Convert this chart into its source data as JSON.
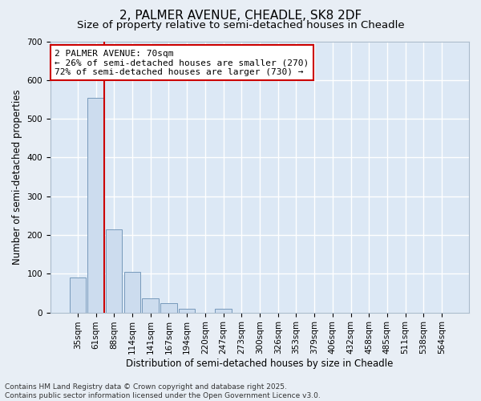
{
  "title_line1": "2, PALMER AVENUE, CHEADLE, SK8 2DF",
  "title_line2": "Size of property relative to semi-detached houses in Cheadle",
  "xlabel": "Distribution of semi-detached houses by size in Cheadle",
  "ylabel": "Number of semi-detached properties",
  "categories": [
    "35sqm",
    "61sqm",
    "88sqm",
    "114sqm",
    "141sqm",
    "167sqm",
    "194sqm",
    "220sqm",
    "247sqm",
    "273sqm",
    "300sqm",
    "326sqm",
    "353sqm",
    "379sqm",
    "406sqm",
    "432sqm",
    "458sqm",
    "485sqm",
    "511sqm",
    "538sqm",
    "564sqm"
  ],
  "values": [
    90,
    555,
    215,
    105,
    37,
    25,
    10,
    0,
    10,
    0,
    0,
    0,
    0,
    0,
    0,
    0,
    0,
    0,
    0,
    0,
    0
  ],
  "bar_color": "#ccdcee",
  "bar_edge_color": "#7799bb",
  "red_line_index": 1,
  "red_line_color": "#cc0000",
  "annotation_text": "2 PALMER AVENUE: 70sqm\n← 26% of semi-detached houses are smaller (270)\n72% of semi-detached houses are larger (730) →",
  "annotation_box_facecolor": "#ffffff",
  "annotation_box_edgecolor": "#cc0000",
  "ylim": [
    0,
    700
  ],
  "yticks": [
    0,
    100,
    200,
    300,
    400,
    500,
    600,
    700
  ],
  "footer_line1": "Contains HM Land Registry data © Crown copyright and database right 2025.",
  "footer_line2": "Contains public sector information licensed under the Open Government Licence v3.0.",
  "fig_facecolor": "#e8eef5",
  "plot_facecolor": "#dce8f5",
  "title1_fontsize": 11,
  "title2_fontsize": 9.5,
  "axis_label_fontsize": 8.5,
  "tick_fontsize": 7.5,
  "annotation_fontsize": 8,
  "footer_fontsize": 6.5,
  "grid_color": "#ffffff",
  "grid_linewidth": 1.0
}
